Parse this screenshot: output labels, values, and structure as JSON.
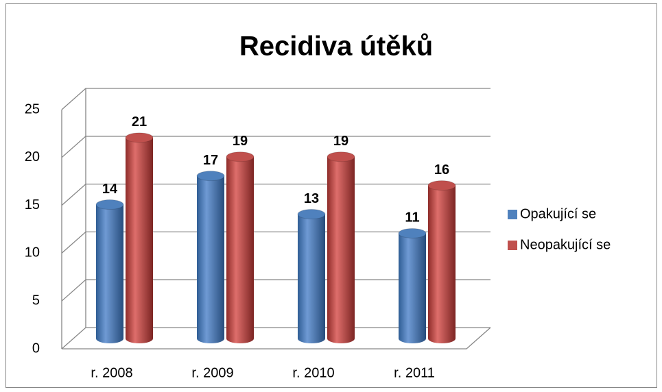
{
  "chart_data": {
    "type": "bar",
    "title": "Recidiva útěků",
    "categories": [
      "r. 2008",
      "r. 2009",
      "r. 2010",
      "r. 2011"
    ],
    "series": [
      {
        "name": "Opakující se",
        "color": "#4f81bd",
        "values": [
          14,
          17,
          13,
          11
        ]
      },
      {
        "name": "Neopakující se",
        "color": "#c0504d",
        "values": [
          21,
          19,
          19,
          16
        ]
      }
    ],
    "ylim": [
      0,
      25
    ],
    "yticks": [
      0,
      5,
      10,
      15,
      20,
      25
    ],
    "grid": true,
    "legend": "right",
    "data_labels": true
  }
}
